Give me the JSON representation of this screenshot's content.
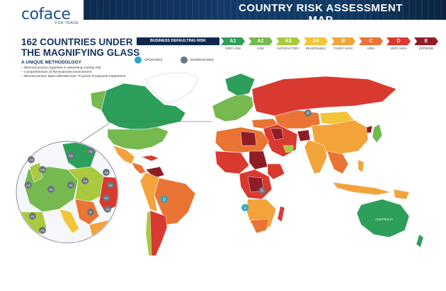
{
  "logo": {
    "name": "coface",
    "tagline": "FOR TRADE"
  },
  "banner_title": "COUNTRY RISK ASSESSMENT MAP",
  "headline": "162 COUNTRIES UNDER THE MAGNIFYING GLASS",
  "methodology": {
    "title": "A UNIQUE METHODOLOGY",
    "items": [
      "– Macroeconomic expertise in assessing country risk",
      "– Comprehension of the business environment",
      "– Microeconomic data collected over 70 years of payment experience"
    ]
  },
  "legend": {
    "label": "BUSINESS DEFAULTING RISK",
    "grades": [
      {
        "grade": "A1",
        "desc": "VERY LOW",
        "color": "#2e9e5b"
      },
      {
        "grade": "A2",
        "desc": "LOW",
        "color": "#75b94f"
      },
      {
        "grade": "A3",
        "desc": "SATISFACTORY",
        "color": "#a9c93e"
      },
      {
        "grade": "A4",
        "desc": "REASONABLE",
        "color": "#f2c438"
      },
      {
        "grade": "B",
        "desc": "FAIRLY HIGH",
        "color": "#f2a33a"
      },
      {
        "grade": "C",
        "desc": "HIGH",
        "color": "#ea7434"
      },
      {
        "grade": "D",
        "desc": "VERY HIGH",
        "color": "#d93a2f"
      },
      {
        "grade": "E",
        "desc": "EXTREME",
        "color": "#8f1d26"
      }
    ]
  },
  "moves": {
    "upgrades": {
      "label": "UPGRADES",
      "color": "#28a9c7"
    },
    "downgrades": {
      "label": "DOWNGRADES",
      "color": "#6a7480"
    }
  },
  "map_labels": {
    "australia": "AUSTRALIA",
    "upgrade_mark": "U",
    "downgrade_mark": "D",
    "inset_grades": [
      "A2",
      "A3",
      "A1",
      "A1",
      "A4",
      "A2",
      "A1",
      "A3",
      "A4",
      "A2",
      "A2",
      "A1",
      "B",
      "A3",
      "A4"
    ]
  }
}
